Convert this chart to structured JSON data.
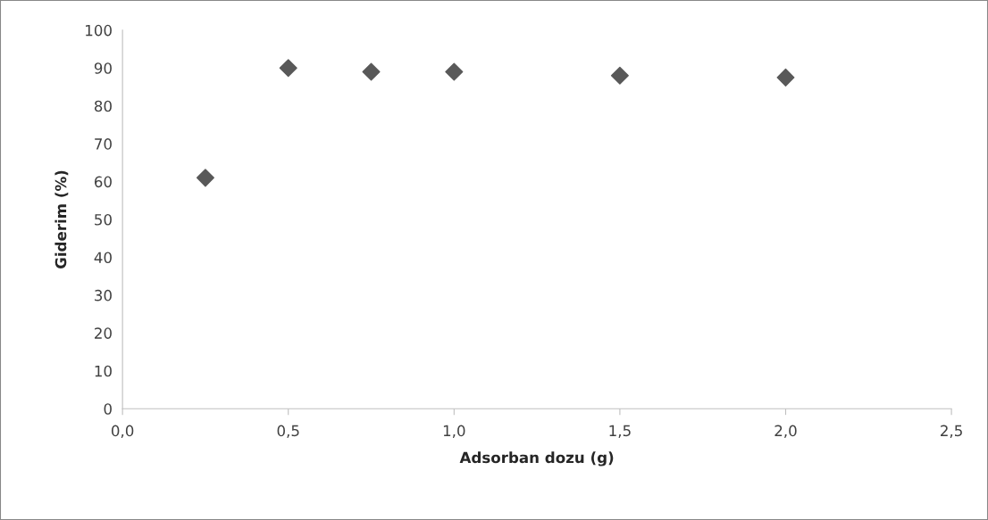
{
  "chart_data": {
    "type": "scatter",
    "xlabel": "Adsorban dozu (g)",
    "ylabel": "Giderim (%)",
    "x": [
      0.25,
      0.5,
      0.75,
      1.0,
      1.5,
      2.0
    ],
    "series": [
      {
        "color": "#595959",
        "values": [
          61,
          90,
          89,
          89,
          88,
          87.5
        ]
      }
    ],
    "marker": "diamond",
    "grid": false,
    "xlim": [
      0,
      2.5
    ],
    "xticks": [
      {
        "value": 0,
        "label": "0,0"
      },
      {
        "value": 0.5,
        "label": "0,5"
      },
      {
        "value": 1.0,
        "label": "1,0"
      },
      {
        "value": 1.5,
        "label": "1,5"
      },
      {
        "value": 2.0,
        "label": "2,0"
      },
      {
        "value": 2.5,
        "label": "2,5"
      }
    ],
    "ylim": [
      0,
      100
    ],
    "yticks": [
      0,
      10,
      20,
      30,
      40,
      50,
      60,
      70,
      80,
      90,
      100
    ]
  }
}
